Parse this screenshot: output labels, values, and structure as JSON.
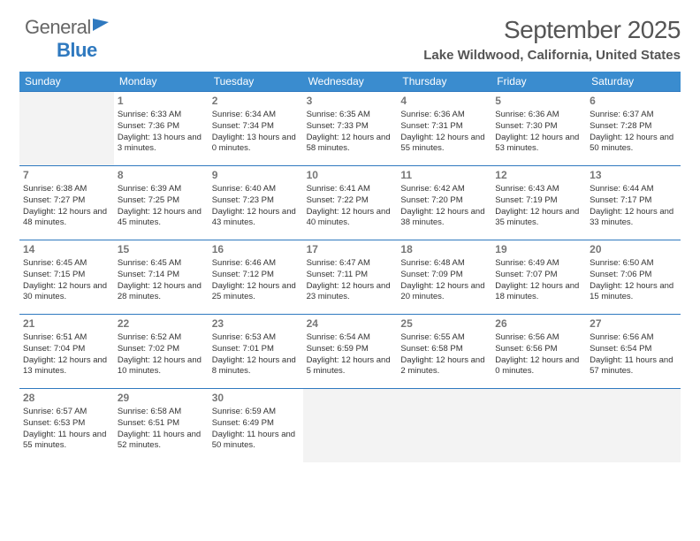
{
  "logo": {
    "text1": "General",
    "text2": "Blue"
  },
  "title": "September 2025",
  "subtitle": "Lake Wildwood, California, United States",
  "colors": {
    "header_bg": "#3a8ccf",
    "header_text": "#ffffff",
    "rule": "#2f79bf",
    "empty_bg": "#f3f3f3",
    "daynum": "#777777",
    "body_text": "#333333"
  },
  "weekdays": [
    "Sunday",
    "Monday",
    "Tuesday",
    "Wednesday",
    "Thursday",
    "Friday",
    "Saturday"
  ],
  "start_offset": 1,
  "days": [
    {
      "n": "1",
      "sunrise": "Sunrise: 6:33 AM",
      "sunset": "Sunset: 7:36 PM",
      "daylight": "Daylight: 13 hours and 3 minutes."
    },
    {
      "n": "2",
      "sunrise": "Sunrise: 6:34 AM",
      "sunset": "Sunset: 7:34 PM",
      "daylight": "Daylight: 13 hours and 0 minutes."
    },
    {
      "n": "3",
      "sunrise": "Sunrise: 6:35 AM",
      "sunset": "Sunset: 7:33 PM",
      "daylight": "Daylight: 12 hours and 58 minutes."
    },
    {
      "n": "4",
      "sunrise": "Sunrise: 6:36 AM",
      "sunset": "Sunset: 7:31 PM",
      "daylight": "Daylight: 12 hours and 55 minutes."
    },
    {
      "n": "5",
      "sunrise": "Sunrise: 6:36 AM",
      "sunset": "Sunset: 7:30 PM",
      "daylight": "Daylight: 12 hours and 53 minutes."
    },
    {
      "n": "6",
      "sunrise": "Sunrise: 6:37 AM",
      "sunset": "Sunset: 7:28 PM",
      "daylight": "Daylight: 12 hours and 50 minutes."
    },
    {
      "n": "7",
      "sunrise": "Sunrise: 6:38 AM",
      "sunset": "Sunset: 7:27 PM",
      "daylight": "Daylight: 12 hours and 48 minutes."
    },
    {
      "n": "8",
      "sunrise": "Sunrise: 6:39 AM",
      "sunset": "Sunset: 7:25 PM",
      "daylight": "Daylight: 12 hours and 45 minutes."
    },
    {
      "n": "9",
      "sunrise": "Sunrise: 6:40 AM",
      "sunset": "Sunset: 7:23 PM",
      "daylight": "Daylight: 12 hours and 43 minutes."
    },
    {
      "n": "10",
      "sunrise": "Sunrise: 6:41 AM",
      "sunset": "Sunset: 7:22 PM",
      "daylight": "Daylight: 12 hours and 40 minutes."
    },
    {
      "n": "11",
      "sunrise": "Sunrise: 6:42 AM",
      "sunset": "Sunset: 7:20 PM",
      "daylight": "Daylight: 12 hours and 38 minutes."
    },
    {
      "n": "12",
      "sunrise": "Sunrise: 6:43 AM",
      "sunset": "Sunset: 7:19 PM",
      "daylight": "Daylight: 12 hours and 35 minutes."
    },
    {
      "n": "13",
      "sunrise": "Sunrise: 6:44 AM",
      "sunset": "Sunset: 7:17 PM",
      "daylight": "Daylight: 12 hours and 33 minutes."
    },
    {
      "n": "14",
      "sunrise": "Sunrise: 6:45 AM",
      "sunset": "Sunset: 7:15 PM",
      "daylight": "Daylight: 12 hours and 30 minutes."
    },
    {
      "n": "15",
      "sunrise": "Sunrise: 6:45 AM",
      "sunset": "Sunset: 7:14 PM",
      "daylight": "Daylight: 12 hours and 28 minutes."
    },
    {
      "n": "16",
      "sunrise": "Sunrise: 6:46 AM",
      "sunset": "Sunset: 7:12 PM",
      "daylight": "Daylight: 12 hours and 25 minutes."
    },
    {
      "n": "17",
      "sunrise": "Sunrise: 6:47 AM",
      "sunset": "Sunset: 7:11 PM",
      "daylight": "Daylight: 12 hours and 23 minutes."
    },
    {
      "n": "18",
      "sunrise": "Sunrise: 6:48 AM",
      "sunset": "Sunset: 7:09 PM",
      "daylight": "Daylight: 12 hours and 20 minutes."
    },
    {
      "n": "19",
      "sunrise": "Sunrise: 6:49 AM",
      "sunset": "Sunset: 7:07 PM",
      "daylight": "Daylight: 12 hours and 18 minutes."
    },
    {
      "n": "20",
      "sunrise": "Sunrise: 6:50 AM",
      "sunset": "Sunset: 7:06 PM",
      "daylight": "Daylight: 12 hours and 15 minutes."
    },
    {
      "n": "21",
      "sunrise": "Sunrise: 6:51 AM",
      "sunset": "Sunset: 7:04 PM",
      "daylight": "Daylight: 12 hours and 13 minutes."
    },
    {
      "n": "22",
      "sunrise": "Sunrise: 6:52 AM",
      "sunset": "Sunset: 7:02 PM",
      "daylight": "Daylight: 12 hours and 10 minutes."
    },
    {
      "n": "23",
      "sunrise": "Sunrise: 6:53 AM",
      "sunset": "Sunset: 7:01 PM",
      "daylight": "Daylight: 12 hours and 8 minutes."
    },
    {
      "n": "24",
      "sunrise": "Sunrise: 6:54 AM",
      "sunset": "Sunset: 6:59 PM",
      "daylight": "Daylight: 12 hours and 5 minutes."
    },
    {
      "n": "25",
      "sunrise": "Sunrise: 6:55 AM",
      "sunset": "Sunset: 6:58 PM",
      "daylight": "Daylight: 12 hours and 2 minutes."
    },
    {
      "n": "26",
      "sunrise": "Sunrise: 6:56 AM",
      "sunset": "Sunset: 6:56 PM",
      "daylight": "Daylight: 12 hours and 0 minutes."
    },
    {
      "n": "27",
      "sunrise": "Sunrise: 6:56 AM",
      "sunset": "Sunset: 6:54 PM",
      "daylight": "Daylight: 11 hours and 57 minutes."
    },
    {
      "n": "28",
      "sunrise": "Sunrise: 6:57 AM",
      "sunset": "Sunset: 6:53 PM",
      "daylight": "Daylight: 11 hours and 55 minutes."
    },
    {
      "n": "29",
      "sunrise": "Sunrise: 6:58 AM",
      "sunset": "Sunset: 6:51 PM",
      "daylight": "Daylight: 11 hours and 52 minutes."
    },
    {
      "n": "30",
      "sunrise": "Sunrise: 6:59 AM",
      "sunset": "Sunset: 6:49 PM",
      "daylight": "Daylight: 11 hours and 50 minutes."
    }
  ]
}
